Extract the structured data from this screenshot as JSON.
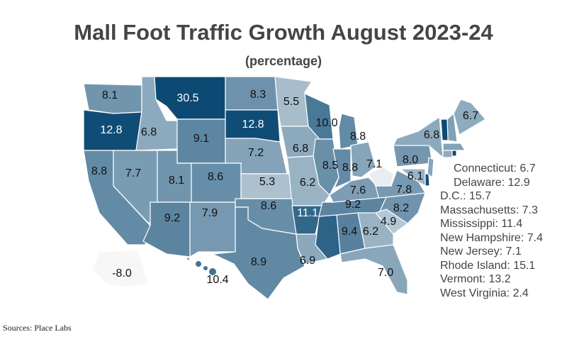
{
  "title": "Mall Foot Traffic Growth August 2023-24",
  "subtitle": "(percentage)",
  "source": "Sources: Place Labs",
  "colors": {
    "low": "#e8edf1",
    "high": "#0c4a74",
    "negative": "#f7f7f7",
    "border": "#ffffff"
  },
  "chart_data": {
    "type": "choropleth",
    "title": "Mall Foot Traffic Growth August 2023-24",
    "subtitle": "(percentage)",
    "states": [
      {
        "name": "Washington",
        "value": 8.1
      },
      {
        "name": "Oregon",
        "value": 12.8
      },
      {
        "name": "Idaho",
        "value": 6.8
      },
      {
        "name": "Montana",
        "value": 30.5
      },
      {
        "name": "Wyoming",
        "value": 9.1
      },
      {
        "name": "North Dakota",
        "value": 8.3
      },
      {
        "name": "South Dakota",
        "value": 12.8
      },
      {
        "name": "Minnesota",
        "value": 5.5
      },
      {
        "name": "Wisconsin",
        "value": 10.0
      },
      {
        "name": "Michigan",
        "value": 8.8
      },
      {
        "name": "Nebraska",
        "value": 7.2
      },
      {
        "name": "Iowa",
        "value": 6.8
      },
      {
        "name": "Illinois",
        "value": 8.5
      },
      {
        "name": "Indiana",
        "value": 8.8
      },
      {
        "name": "Ohio",
        "value": 7.1
      },
      {
        "name": "Pennsylvania",
        "value": 8.0
      },
      {
        "name": "New York",
        "value": 6.8
      },
      {
        "name": "Maine",
        "value": 6.7
      },
      {
        "name": "California",
        "value": 8.8
      },
      {
        "name": "Nevada",
        "value": 7.7
      },
      {
        "name": "Utah",
        "value": 8.1
      },
      {
        "name": "Colorado",
        "value": 8.6
      },
      {
        "name": "Kansas",
        "value": 5.3
      },
      {
        "name": "Missouri",
        "value": 6.2
      },
      {
        "name": "Kentucky",
        "value": 7.6
      },
      {
        "name": "Virginia",
        "value": 7.8
      },
      {
        "name": "Maryland",
        "value": 6.1
      },
      {
        "name": "Arizona",
        "value": 9.2
      },
      {
        "name": "New Mexico",
        "value": 7.9
      },
      {
        "name": "Oklahoma",
        "value": 8.6
      },
      {
        "name": "Arkansas",
        "value": 11.1
      },
      {
        "name": "Tennessee",
        "value": 9.2
      },
      {
        "name": "North Carolina",
        "value": 8.2
      },
      {
        "name": "Texas",
        "value": 8.9
      },
      {
        "name": "Louisiana",
        "value": 6.9
      },
      {
        "name": "Alabama",
        "value": 9.4
      },
      {
        "name": "Georgia",
        "value": 6.2
      },
      {
        "name": "South Carolina",
        "value": 4.9
      },
      {
        "name": "Florida",
        "value": 7.0
      },
      {
        "name": "Alaska",
        "value": -8.0
      },
      {
        "name": "Hawaii",
        "value": 10.4
      },
      {
        "name": "Connecticut",
        "value": 6.7
      },
      {
        "name": "Delaware",
        "value": 12.9
      },
      {
        "name": "D.C.",
        "value": 15.7
      },
      {
        "name": "Massachusetts",
        "value": 7.3
      },
      {
        "name": "Mississippi",
        "value": 11.4
      },
      {
        "name": "New Hampshire",
        "value": 7.4
      },
      {
        "name": "New Jersey",
        "value": 7.1
      },
      {
        "name": "Rhode Island",
        "value": 15.1
      },
      {
        "name": "Vermont",
        "value": 13.2
      },
      {
        "name": "West Virginia",
        "value": 2.4
      }
    ],
    "annotations": [
      "Connecticut: 6.7",
      "Delaware: 12.9",
      "D.C.: 15.7",
      "Massachusetts: 7.3",
      "Mississippi: 11.4",
      "New Hampshire: 7.4",
      "New Jersey: 7.1",
      "Rhode Island: 15.1",
      "Vermont: 13.2",
      "West Virginia: 2.4"
    ]
  }
}
